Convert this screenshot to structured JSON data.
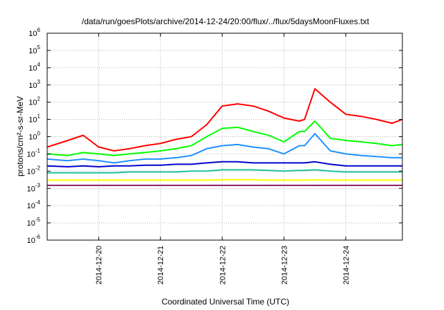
{
  "chart_data": {
    "type": "line",
    "title": "/data/run/goesPlots/archive/2014-12-24/20:00/flux/../flux/5daysMoonFluxes.txt",
    "xlabel": "Coordinated Universal Time (UTC)",
    "ylabel": "protons/cm²-s-sr-MeV",
    "y_scale": "log",
    "ylim": [
      1e-06,
      1000000.0
    ],
    "y_ticks": [
      {
        "base": "10",
        "exp": "-6",
        "value": 1e-06
      },
      {
        "base": "10",
        "exp": "-5",
        "value": 1e-05
      },
      {
        "base": "10",
        "exp": "-4",
        "value": 0.0001
      },
      {
        "base": "10",
        "exp": "-3",
        "value": 0.001
      },
      {
        "base": "10",
        "exp": "-2",
        "value": 0.01
      },
      {
        "base": "10",
        "exp": "-1",
        "value": 0.1
      },
      {
        "base": "10",
        "exp": "0",
        "value": 1
      },
      {
        "base": "10",
        "exp": "1",
        "value": 10
      },
      {
        "base": "10",
        "exp": "2",
        "value": 100
      },
      {
        "base": "10",
        "exp": "3",
        "value": 1000
      },
      {
        "base": "10",
        "exp": "4",
        "value": 10000
      },
      {
        "base": "10",
        "exp": "5",
        "value": 100000
      },
      {
        "base": "10",
        "exp": "6",
        "value": 1000000
      }
    ],
    "xlim": [
      "2014-12-19 04:00",
      "2014-12-24 22:00"
    ],
    "x_ticks": [
      "2014-12-20",
      "2014-12-21",
      "2014-12-22",
      "2014-12-23",
      "2014-12-24"
    ],
    "grid": true,
    "legend": "none",
    "series": [
      {
        "color": "#ff0000",
        "x": [
          "2014-12-19 04:00",
          "2014-12-19 12:00",
          "2014-12-19 18:00",
          "2014-12-20 00:00",
          "2014-12-20 06:00",
          "2014-12-20 12:00",
          "2014-12-20 18:00",
          "2014-12-21 00:00",
          "2014-12-21 06:00",
          "2014-12-21 12:00",
          "2014-12-21 18:00",
          "2014-12-22 00:00",
          "2014-12-22 06:00",
          "2014-12-22 12:00",
          "2014-12-22 18:00",
          "2014-12-23 00:00",
          "2014-12-23 06:00",
          "2014-12-23 08:00",
          "2014-12-23 12:00",
          "2014-12-23 18:00",
          "2014-12-24 00:00",
          "2014-12-24 06:00",
          "2014-12-24 12:00",
          "2014-12-24 18:00",
          "2014-12-24 22:00"
        ],
        "values": [
          0.25,
          0.6,
          1.2,
          0.25,
          0.15,
          0.2,
          0.3,
          0.4,
          0.7,
          1.0,
          5,
          60,
          80,
          60,
          30,
          12,
          8,
          10,
          600,
          100,
          20,
          15,
          10,
          6,
          10
        ]
      },
      {
        "color": "#00ff00",
        "x": [
          "2014-12-19 04:00",
          "2014-12-19 12:00",
          "2014-12-19 18:00",
          "2014-12-20 00:00",
          "2014-12-20 06:00",
          "2014-12-20 12:00",
          "2014-12-20 18:00",
          "2014-12-21 00:00",
          "2014-12-21 06:00",
          "2014-12-21 12:00",
          "2014-12-21 18:00",
          "2014-12-22 00:00",
          "2014-12-22 06:00",
          "2014-12-22 12:00",
          "2014-12-22 18:00",
          "2014-12-23 00:00",
          "2014-12-23 06:00",
          "2014-12-23 08:00",
          "2014-12-23 12:00",
          "2014-12-23 18:00",
          "2014-12-24 00:00",
          "2014-12-24 06:00",
          "2014-12-24 12:00",
          "2014-12-24 18:00",
          "2014-12-24 22:00"
        ],
        "values": [
          0.1,
          0.08,
          0.12,
          0.1,
          0.08,
          0.1,
          0.12,
          0.15,
          0.2,
          0.3,
          1.0,
          3,
          3.5,
          2,
          1.2,
          0.5,
          2,
          2,
          8,
          0.8,
          0.6,
          0.5,
          0.4,
          0.3,
          0.35
        ]
      },
      {
        "color": "#1e90ff",
        "x": [
          "2014-12-19 04:00",
          "2014-12-19 12:00",
          "2014-12-19 18:00",
          "2014-12-20 00:00",
          "2014-12-20 06:00",
          "2014-12-20 12:00",
          "2014-12-20 18:00",
          "2014-12-21 00:00",
          "2014-12-21 06:00",
          "2014-12-21 12:00",
          "2014-12-21 18:00",
          "2014-12-22 00:00",
          "2014-12-22 06:00",
          "2014-12-22 12:00",
          "2014-12-22 18:00",
          "2014-12-23 00:00",
          "2014-12-23 06:00",
          "2014-12-23 08:00",
          "2014-12-23 12:00",
          "2014-12-23 18:00",
          "2014-12-24 00:00",
          "2014-12-24 06:00",
          "2014-12-24 12:00",
          "2014-12-24 18:00",
          "2014-12-24 22:00"
        ],
        "values": [
          0.05,
          0.04,
          0.05,
          0.04,
          0.03,
          0.04,
          0.05,
          0.05,
          0.06,
          0.08,
          0.2,
          0.3,
          0.35,
          0.25,
          0.2,
          0.1,
          0.3,
          0.3,
          1.5,
          0.15,
          0.1,
          0.08,
          0.07,
          0.06,
          0.06
        ]
      },
      {
        "color": "#0000cd",
        "x": [
          "2014-12-19 04:00",
          "2014-12-19 12:00",
          "2014-12-19 18:00",
          "2014-12-20 00:00",
          "2014-12-20 06:00",
          "2014-12-20 12:00",
          "2014-12-20 18:00",
          "2014-12-21 00:00",
          "2014-12-21 06:00",
          "2014-12-21 12:00",
          "2014-12-21 18:00",
          "2014-12-22 00:00",
          "2014-12-22 06:00",
          "2014-12-22 12:00",
          "2014-12-22 18:00",
          "2014-12-23 00:00",
          "2014-12-23 06:00",
          "2014-12-23 08:00",
          "2014-12-23 12:00",
          "2014-12-23 18:00",
          "2014-12-24 00:00",
          "2014-12-24 06:00",
          "2014-12-24 12:00",
          "2014-12-24 18:00",
          "2014-12-24 22:00"
        ],
        "values": [
          0.02,
          0.018,
          0.02,
          0.018,
          0.02,
          0.02,
          0.022,
          0.022,
          0.025,
          0.025,
          0.03,
          0.035,
          0.035,
          0.03,
          0.03,
          0.03,
          0.03,
          0.03,
          0.035,
          0.025,
          0.02,
          0.02,
          0.02,
          0.02,
          0.02
        ]
      },
      {
        "color": "#20c0a0",
        "x": [
          "2014-12-19 04:00",
          "2014-12-19 12:00",
          "2014-12-19 18:00",
          "2014-12-20 00:00",
          "2014-12-20 06:00",
          "2014-12-20 12:00",
          "2014-12-20 18:00",
          "2014-12-21 00:00",
          "2014-12-21 06:00",
          "2014-12-21 12:00",
          "2014-12-21 18:00",
          "2014-12-22 00:00",
          "2014-12-22 06:00",
          "2014-12-22 12:00",
          "2014-12-22 18:00",
          "2014-12-23 00:00",
          "2014-12-23 06:00",
          "2014-12-23 08:00",
          "2014-12-23 12:00",
          "2014-12-23 18:00",
          "2014-12-24 00:00",
          "2014-12-24 06:00",
          "2014-12-24 12:00",
          "2014-12-24 18:00",
          "2014-12-24 22:00"
        ],
        "values": [
          0.008,
          0.008,
          0.008,
          0.008,
          0.008,
          0.009,
          0.009,
          0.009,
          0.009,
          0.01,
          0.01,
          0.012,
          0.012,
          0.012,
          0.011,
          0.01,
          0.011,
          0.011,
          0.012,
          0.01,
          0.009,
          0.009,
          0.009,
          0.009,
          0.009
        ]
      },
      {
        "color": "#ffff00",
        "x": [
          "2014-12-19 04:00",
          "2014-12-19 12:00",
          "2014-12-19 18:00",
          "2014-12-20 00:00",
          "2014-12-20 06:00",
          "2014-12-20 12:00",
          "2014-12-20 18:00",
          "2014-12-21 00:00",
          "2014-12-21 06:00",
          "2014-12-21 12:00",
          "2014-12-21 18:00",
          "2014-12-22 00:00",
          "2014-12-22 06:00",
          "2014-12-22 12:00",
          "2014-12-22 18:00",
          "2014-12-23 00:00",
          "2014-12-23 06:00",
          "2014-12-23 08:00",
          "2014-12-23 12:00",
          "2014-12-23 18:00",
          "2014-12-24 00:00",
          "2014-12-24 06:00",
          "2014-12-24 12:00",
          "2014-12-24 18:00",
          "2014-12-24 22:00"
        ],
        "values": [
          0.003,
          0.003,
          0.003,
          0.003,
          0.003,
          0.003,
          0.003,
          0.003,
          0.003,
          0.003,
          0.003,
          0.0032,
          0.0032,
          0.0032,
          0.003,
          0.003,
          0.003,
          0.003,
          0.0032,
          0.003,
          0.003,
          0.003,
          0.003,
          0.003,
          0.003
        ]
      },
      {
        "color": "#8b1a6b",
        "x": [
          "2014-12-19 04:00",
          "2014-12-19 12:00",
          "2014-12-19 18:00",
          "2014-12-20 00:00",
          "2014-12-20 06:00",
          "2014-12-20 12:00",
          "2014-12-20 18:00",
          "2014-12-21 00:00",
          "2014-12-21 06:00",
          "2014-12-21 12:00",
          "2014-12-21 18:00",
          "2014-12-22 00:00",
          "2014-12-22 06:00",
          "2014-12-22 12:00",
          "2014-12-22 18:00",
          "2014-12-23 00:00",
          "2014-12-23 06:00",
          "2014-12-23 08:00",
          "2014-12-23 12:00",
          "2014-12-23 18:00",
          "2014-12-24 00:00",
          "2014-12-24 06:00",
          "2014-12-24 12:00",
          "2014-12-24 18:00",
          "2014-12-24 22:00"
        ],
        "values": [
          0.0015,
          0.0015,
          0.0015,
          0.0015,
          0.0015,
          0.0015,
          0.0015,
          0.0015,
          0.0015,
          0.0015,
          0.0015,
          0.0015,
          0.0015,
          0.0015,
          0.0015,
          0.0015,
          0.0015,
          0.0015,
          0.0015,
          0.0015,
          0.0015,
          0.0015,
          0.0015,
          0.0015,
          0.0015
        ]
      }
    ]
  }
}
